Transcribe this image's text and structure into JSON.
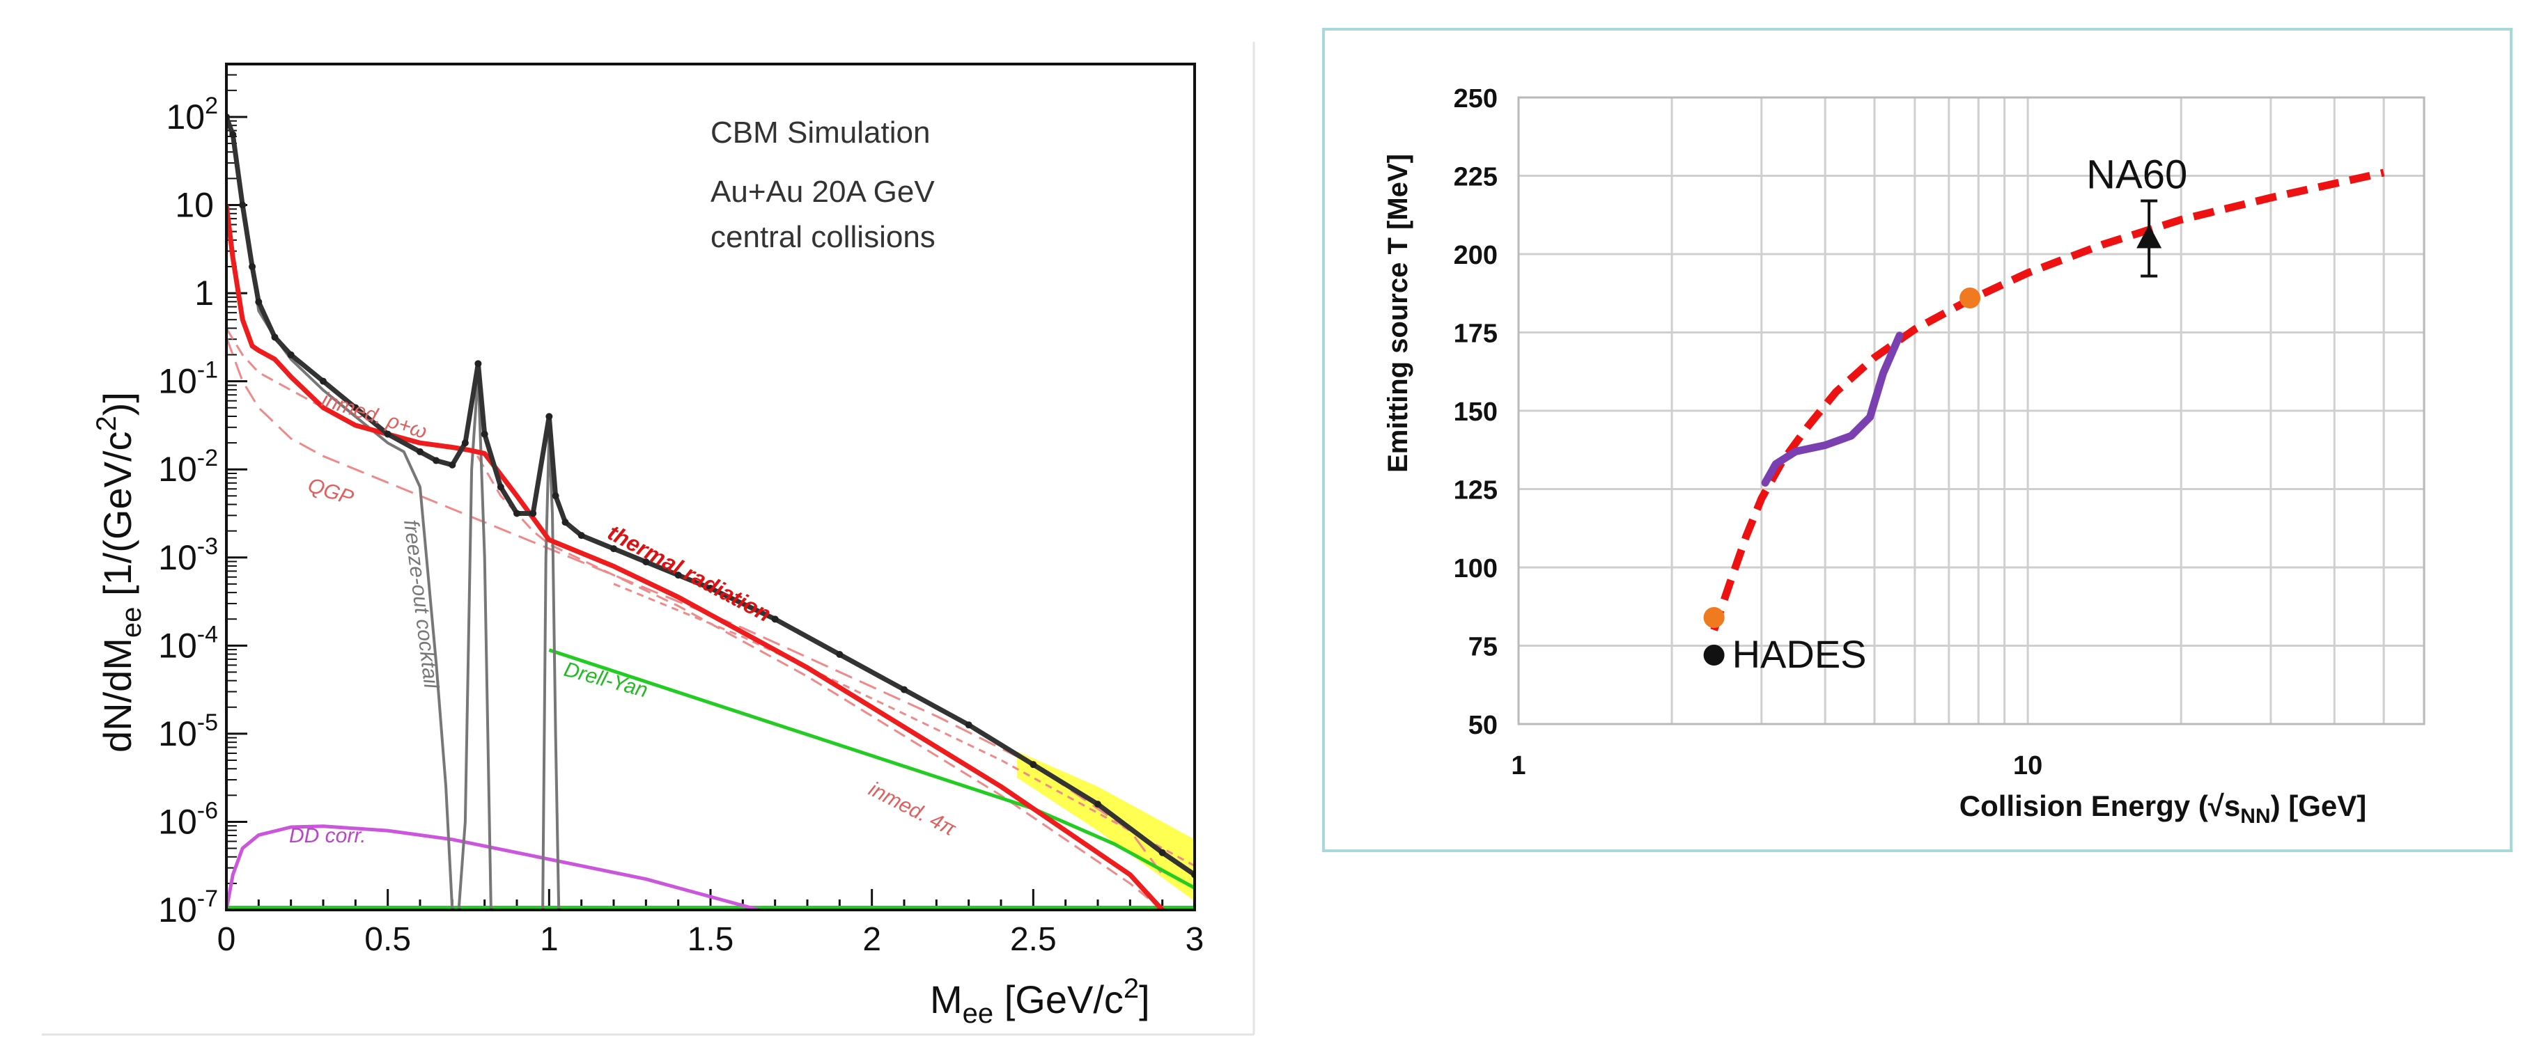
{
  "chart_data": [
    {
      "type": "line",
      "title": "",
      "xlabel_main": "M",
      "xlabel_sub": "ee",
      "xlabel_unit": " [GeV/c",
      "xlabel_sup": "2",
      "xlabel_end": "]",
      "ylabel_main": "dN/dM",
      "ylabel_sub": "ee",
      "ylabel_unit": " [1/(GeV/c",
      "ylabel_sup": "2",
      "ylabel_end": ")]",
      "xlim": [
        0,
        3
      ],
      "ylim_log10": [
        -7,
        2.6
      ],
      "x_ticks": [
        0,
        0.5,
        1,
        1.5,
        2,
        2.5,
        3
      ],
      "x_tick_labels": [
        "0",
        "0.5",
        "1",
        "1.5",
        "2",
        "2.5",
        "3"
      ],
      "y_ticks": [
        {
          "exp": 2,
          "label": "10",
          "sup": "2"
        },
        {
          "exp": 1,
          "label": "10",
          "sup": ""
        },
        {
          "exp": 0,
          "label": "1",
          "sup": ""
        },
        {
          "exp": -1,
          "label": "10",
          "sup": "-1"
        },
        {
          "exp": -2,
          "label": "10",
          "sup": "-2"
        },
        {
          "exp": -3,
          "label": "10",
          "sup": "-3"
        },
        {
          "exp": -4,
          "label": "10",
          "sup": "-4"
        },
        {
          "exp": -5,
          "label": "10",
          "sup": "-5"
        },
        {
          "exp": -6,
          "label": "10",
          "sup": "-6"
        },
        {
          "exp": -7,
          "label": "10",
          "sup": "-7"
        }
      ],
      "annotation_lines": [
        "CBM Simulation",
        "Au+Au 20A GeV",
        "central collisions"
      ],
      "curve_labels": {
        "thermal": "thermal radiation",
        "inmed_rho": "inmed. ρ+ω",
        "qgp": "QGP",
        "freeze": "freeze-out cocktail",
        "drell": "Drell-Yan",
        "inmed_4pi": "inmed. 4π",
        "dd": "DD corr."
      },
      "colors": {
        "thermal": "#ee1c1c",
        "inmed": "#f08a8a",
        "cocktail": "#777777",
        "drell": "#22cc22",
        "dd": "#cc55dd",
        "data": "#333333",
        "band": "#ffff33"
      },
      "series": [
        {
          "name": "data",
          "x": [
            0.0,
            0.02,
            0.05,
            0.08,
            0.1,
            0.15,
            0.2,
            0.3,
            0.4,
            0.5,
            0.6,
            0.65,
            0.7,
            0.74,
            0.78,
            0.8,
            0.85,
            0.9,
            0.95,
            1.0,
            1.02,
            1.05,
            1.1,
            1.2,
            1.3,
            1.4,
            1.5,
            1.7,
            1.9,
            2.1,
            2.3,
            2.5,
            2.7,
            2.9,
            3.0
          ],
          "log10y": [
            2.0,
            1.8,
            1.0,
            0.3,
            -0.1,
            -0.5,
            -0.7,
            -1.0,
            -1.3,
            -1.6,
            -1.8,
            -1.9,
            -1.95,
            -1.7,
            -0.8,
            -1.6,
            -2.2,
            -2.5,
            -2.5,
            -1.4,
            -2.3,
            -2.6,
            -2.75,
            -2.9,
            -3.05,
            -3.2,
            -3.35,
            -3.7,
            -4.1,
            -4.5,
            -4.9,
            -5.35,
            -5.8,
            -6.35,
            -6.6
          ]
        },
        {
          "name": "thermal radiation",
          "x": [
            0.0,
            0.02,
            0.05,
            0.08,
            0.1,
            0.15,
            0.2,
            0.3,
            0.4,
            0.5,
            0.6,
            0.7,
            0.75,
            0.8,
            0.9,
            1.0,
            1.2,
            1.4,
            1.6,
            1.8,
            2.0,
            2.2,
            2.4,
            2.6,
            2.8,
            2.9
          ],
          "log10y": [
            1.0,
            0.4,
            -0.3,
            -0.6,
            -0.65,
            -0.75,
            -0.95,
            -1.3,
            -1.5,
            -1.6,
            -1.7,
            -1.75,
            -1.78,
            -1.82,
            -2.3,
            -2.8,
            -3.1,
            -3.45,
            -3.85,
            -4.25,
            -4.7,
            -5.15,
            -5.6,
            -6.1,
            -6.6,
            -7.0
          ]
        },
        {
          "name": "inmed. rho+omega",
          "x": [
            0.0,
            0.05,
            0.1,
            0.2,
            0.3,
            0.4,
            0.5,
            0.6,
            0.7,
            0.77,
            0.85,
            0.95,
            1.0,
            1.2,
            1.4,
            1.6,
            1.8,
            2.0,
            2.2,
            2.4,
            2.6,
            2.8,
            2.9
          ],
          "log10y": [
            -0.4,
            -0.7,
            -0.9,
            -1.1,
            -1.3,
            -1.5,
            -1.6,
            -1.7,
            -1.75,
            -1.8,
            -2.3,
            -2.7,
            -2.85,
            -3.2,
            -3.55,
            -3.95,
            -4.35,
            -4.8,
            -5.25,
            -5.7,
            -6.2,
            -6.7,
            -7.0
          ]
        },
        {
          "name": "QGP",
          "x": [
            0.0,
            0.05,
            0.1,
            0.2,
            0.3,
            0.5,
            0.7,
            1.0,
            1.3,
            1.6,
            1.9,
            2.2,
            2.5,
            2.8,
            2.9
          ],
          "log10y": [
            -0.5,
            -1.0,
            -1.3,
            -1.65,
            -1.85,
            -2.15,
            -2.45,
            -2.9,
            -3.35,
            -3.8,
            -4.3,
            -4.8,
            -5.35,
            -6.1,
            -6.6
          ]
        },
        {
          "name": "freeze-out cocktail",
          "x": [
            0.0,
            0.02,
            0.05,
            0.08,
            0.1,
            0.15,
            0.2,
            0.3,
            0.4,
            0.5,
            0.55,
            0.6,
            0.62,
            0.65,
            0.68,
            0.7,
            0.72,
            0.74,
            0.76,
            0.78,
            0.8,
            0.81,
            0.82,
            0.98,
            0.99,
            1.0,
            1.01,
            1.02,
            1.03
          ],
          "log10y": [
            2.0,
            1.8,
            1.0,
            0.3,
            -0.2,
            -0.5,
            -0.75,
            -1.1,
            -1.4,
            -1.7,
            -1.8,
            -2.2,
            -3.0,
            -4.2,
            -5.6,
            -7.0,
            -7.0,
            -6.0,
            -2.0,
            -0.9,
            -3.0,
            -5.0,
            -7.0,
            -7.0,
            -3.0,
            -1.6,
            -2.5,
            -5.0,
            -7.0
          ]
        },
        {
          "name": "Drell-Yan",
          "x": [
            1.0,
            1.5,
            2.0,
            2.5,
            2.75,
            3.0
          ],
          "log10y": [
            -4.05,
            -4.65,
            -5.25,
            -5.85,
            -6.25,
            -6.75
          ]
        },
        {
          "name": "inmed. 4pi",
          "x": [
            1.2,
            1.6,
            2.0,
            2.4,
            2.6,
            2.8,
            3.0
          ],
          "log10y": [
            -3.3,
            -3.9,
            -4.6,
            -5.3,
            -5.7,
            -6.1,
            -6.5
          ]
        },
        {
          "name": "DD corr.",
          "x": [
            0.0,
            0.02,
            0.05,
            0.1,
            0.2,
            0.3,
            0.5,
            0.7,
            0.9,
            1.1,
            1.3,
            1.5,
            1.65
          ],
          "log10y": [
            -7.0,
            -6.6,
            -6.3,
            -6.15,
            -6.06,
            -6.05,
            -6.1,
            -6.2,
            -6.35,
            -6.5,
            -6.65,
            -6.85,
            -7.0
          ]
        }
      ]
    },
    {
      "type": "line",
      "x_scale": "log",
      "xlim": [
        1,
        60
      ],
      "ylim": [
        50,
        250
      ],
      "x_tick_labels": [
        {
          "x": 1,
          "label": "1"
        },
        {
          "x": 10,
          "label": "10"
        }
      ],
      "y_ticks": [
        50,
        75,
        100,
        125,
        150,
        175,
        200,
        225,
        250
      ],
      "xlabel_main": "Collision Energy (√s",
      "xlabel_sub": "NN",
      "xlabel_end": ")  [GeV]",
      "ylabel": "Emitting source T [MeV]",
      "colors": {
        "dashed": "#ee1111",
        "purple": "#7a3fb0",
        "orange": "#f07a20",
        "black": "#111111",
        "grid": "#cfcfcf",
        "frame": "#a8d8dc"
      },
      "series": [
        {
          "name": "dashed fit",
          "x": [
            2.42,
            2.6,
            2.8,
            3.0,
            3.3,
            3.7,
            4.2,
            5.0,
            6.0,
            7.6,
            10.0,
            14.0,
            20.0,
            30.0,
            50.0
          ],
          "y": [
            80,
            95,
            110,
            122,
            134,
            145,
            156,
            167,
            176,
            185,
            194,
            203,
            211,
            218,
            226
          ]
        },
        {
          "name": "purple band",
          "x": [
            3.05,
            3.2,
            3.5,
            4.0,
            4.5,
            4.9,
            5.2,
            5.6
          ],
          "y": [
            127,
            133,
            137,
            139,
            142,
            148,
            162,
            174
          ]
        },
        {
          "name": "orange points",
          "x": [
            2.42,
            7.7
          ],
          "y": [
            84,
            186
          ]
        },
        {
          "name": "HADES",
          "label": "HADES",
          "x": 2.42,
          "y": 72
        },
        {
          "name": "NA60",
          "label": "NA60",
          "x": 17.3,
          "y": 205,
          "err": 12
        }
      ]
    }
  ]
}
